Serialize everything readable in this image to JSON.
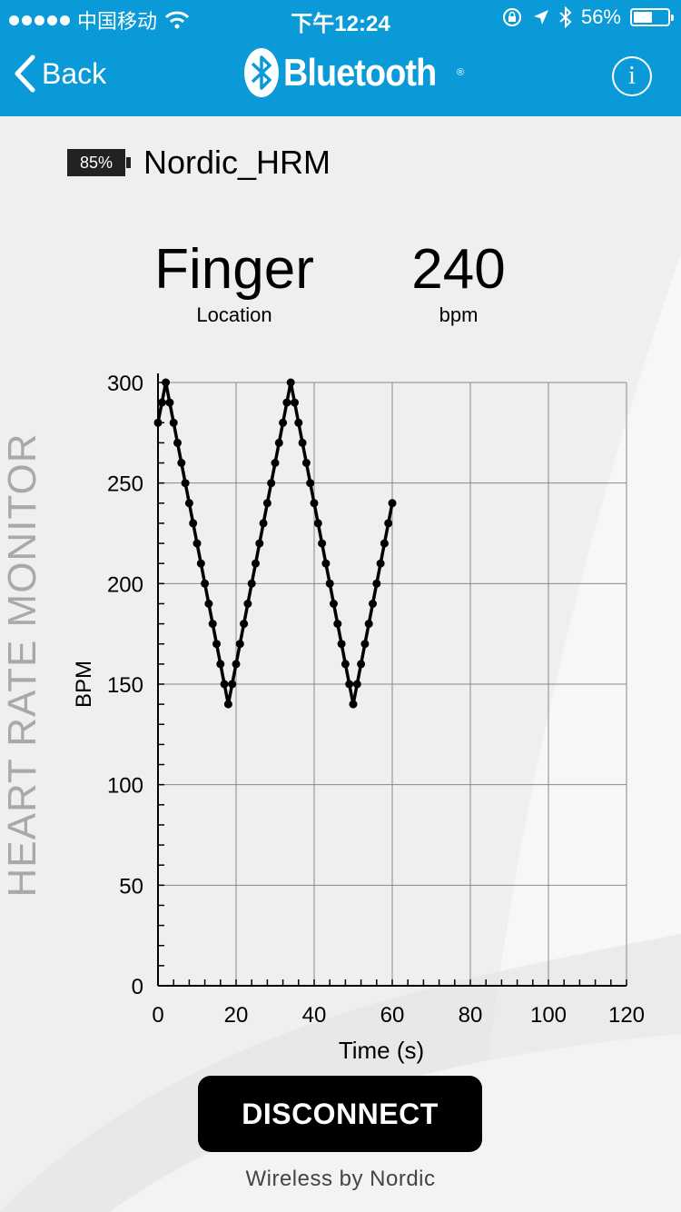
{
  "status_bar": {
    "carrier": "中国移动",
    "time": "下午12:24",
    "battery_percent": "56%",
    "battery_level": 0.56
  },
  "nav": {
    "back_label": "Back",
    "brand": "Bluetooth",
    "info_icon": "info-icon"
  },
  "device": {
    "battery_label": "85%",
    "name": "Nordic_HRM"
  },
  "readouts": {
    "location_value": "Finger",
    "location_label": "Location",
    "bpm_value": "240",
    "bpm_label": "bpm"
  },
  "side_label": "HEART RATE MONITOR",
  "chart_data": {
    "type": "line",
    "xlabel": "Time (s)",
    "ylabel": "BPM",
    "xlim": [
      0,
      120
    ],
    "ylim": [
      0,
      300
    ],
    "xticks": [
      0,
      20,
      40,
      60,
      80,
      100,
      120
    ],
    "yticks": [
      0,
      50,
      100,
      150,
      200,
      250,
      300
    ],
    "grid": true,
    "series": [
      {
        "color": "#000000",
        "points": [
          [
            0,
            280
          ],
          [
            1,
            290
          ],
          [
            2,
            300
          ],
          [
            3,
            290
          ],
          [
            4,
            280
          ],
          [
            5,
            270
          ],
          [
            6,
            260
          ],
          [
            7,
            250
          ],
          [
            8,
            240
          ],
          [
            9,
            230
          ],
          [
            10,
            220
          ],
          [
            11,
            210
          ],
          [
            12,
            200
          ],
          [
            13,
            190
          ],
          [
            14,
            180
          ],
          [
            15,
            170
          ],
          [
            16,
            160
          ],
          [
            17,
            150
          ],
          [
            18,
            140
          ],
          [
            19,
            150
          ],
          [
            20,
            160
          ],
          [
            21,
            170
          ],
          [
            22,
            180
          ],
          [
            23,
            190
          ],
          [
            24,
            200
          ],
          [
            25,
            210
          ],
          [
            26,
            220
          ],
          [
            27,
            230
          ],
          [
            28,
            240
          ],
          [
            29,
            250
          ],
          [
            30,
            260
          ],
          [
            31,
            270
          ],
          [
            32,
            280
          ],
          [
            33,
            290
          ],
          [
            34,
            300
          ],
          [
            35,
            290
          ],
          [
            36,
            280
          ],
          [
            37,
            270
          ],
          [
            38,
            260
          ],
          [
            39,
            250
          ],
          [
            40,
            240
          ],
          [
            41,
            230
          ],
          [
            42,
            220
          ],
          [
            43,
            210
          ],
          [
            44,
            200
          ],
          [
            45,
            190
          ],
          [
            46,
            180
          ],
          [
            47,
            170
          ],
          [
            48,
            160
          ],
          [
            49,
            150
          ],
          [
            50,
            140
          ],
          [
            51,
            150
          ],
          [
            52,
            160
          ],
          [
            53,
            170
          ],
          [
            54,
            180
          ],
          [
            55,
            190
          ],
          [
            56,
            200
          ],
          [
            57,
            210
          ],
          [
            58,
            220
          ],
          [
            59,
            230
          ],
          [
            60,
            240
          ]
        ]
      }
    ]
  },
  "actions": {
    "disconnect_label": "DISCONNECT"
  },
  "footer": "Wireless by Nordic"
}
